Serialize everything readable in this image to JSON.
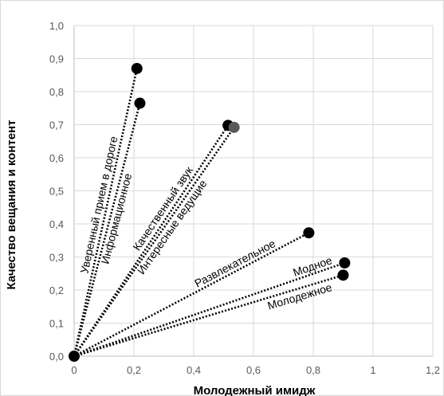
{
  "chart_data": {
    "type": "scatter",
    "title": "",
    "xlabel": "Молодежный имидж",
    "ylabel": "Качество вещания и контент",
    "xlim": [
      0,
      1.2
    ],
    "ylim": [
      0,
      1.0
    ],
    "x_ticks": [
      "0",
      "0,2",
      "0,4",
      "0,6",
      "0,8",
      "1",
      "1,2"
    ],
    "y_ticks": [
      "0,0",
      "0,1",
      "0,2",
      "0,3",
      "0,4",
      "0,5",
      "0,6",
      "0,7",
      "0,8",
      "0,9",
      "1,0"
    ],
    "grid": true,
    "legend": "none",
    "origin": [
      0,
      0
    ],
    "rays_from_origin": true,
    "points": [
      {
        "label": "Уверенный прием в дороге",
        "x": 0.21,
        "y": 0.87,
        "color": "#000000"
      },
      {
        "label": "Информационное",
        "x": 0.22,
        "y": 0.765,
        "color": "#000000"
      },
      {
        "label": "Качественный звук",
        "x": 0.515,
        "y": 0.698,
        "color": "#000000"
      },
      {
        "label": "Интересные ведущие",
        "x": 0.535,
        "y": 0.692,
        "color": "#595959"
      },
      {
        "label": "Развлекательное",
        "x": 0.785,
        "y": 0.373,
        "color": "#000000"
      },
      {
        "label": "Модное",
        "x": 0.905,
        "y": 0.282,
        "color": "#000000"
      },
      {
        "label": "Молодежное",
        "x": 0.9,
        "y": 0.245,
        "color": "#000000"
      }
    ]
  }
}
